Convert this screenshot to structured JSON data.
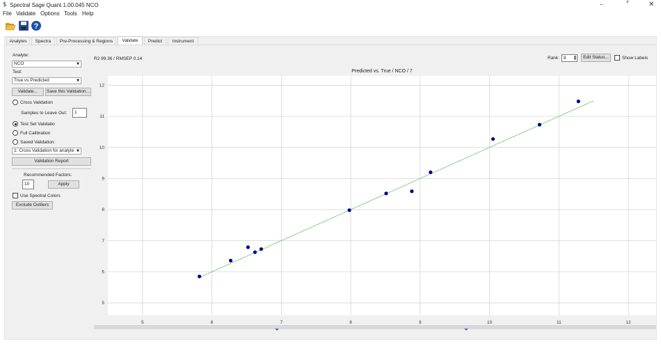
{
  "window": {
    "title": "Spectral Sage Quant 1.00.045 NCO",
    "app_icon": "$",
    "minimize_glyph": "–",
    "restore_glyph": "⌜",
    "close_glyph": "✕"
  },
  "menu": [
    "File",
    "Validate",
    "Options",
    "Tools",
    "Help"
  ],
  "toolbar": {
    "icons": [
      "open-folder-icon",
      "save-disk-icon",
      "help-icon"
    ],
    "help_glyph": "?"
  },
  "tabs": [
    {
      "label": "Analytes",
      "active": false
    },
    {
      "label": "Spectra",
      "active": false
    },
    {
      "label": "Pre-Processing & Regions",
      "active": false
    },
    {
      "label": "Validate",
      "active": true
    },
    {
      "label": "Predict",
      "active": false
    },
    {
      "label": "Instrument",
      "active": false
    }
  ],
  "left": {
    "analyte_label": "Analyte:",
    "analyte_value": "NCO",
    "test_label": "Test:",
    "test_value": "True vs Predicted",
    "validate_btn": "Validate...",
    "save_validation_btn": "Save this Validation...",
    "cross_validation": "Cross Validation",
    "samples_leave_out_label": "Samples to Leave Out:",
    "samples_leave_out_value": "1",
    "test_set_validation": "Test Set Validatio",
    "full_calibration": "Full Calibration",
    "saved_validation": "Saved Validation:",
    "saved_validation_value": "1: Cross Validation for analyte",
    "validation_report_btn": "Validation Report",
    "recommended_factors_label": "Recommended Factors:",
    "factors_value": "10",
    "apply_btn": "Apply",
    "use_spectral_colors": "Use Spectral Colors",
    "exclude_outliers_btn": "Exclude Outliers",
    "combo_arrow": "▼",
    "selected_mode": "test_set"
  },
  "header": {
    "stats": "R2 99.36 / RMSEP 0.14",
    "rank_label": "Rank:",
    "rank_value": "8",
    "spin_up": "▲",
    "spin_down": "▼",
    "edit_status_btn": "Edit Status...",
    "show_labels": "Show Labels"
  },
  "colors": {
    "point": "#00008b",
    "fit_line": "#3cb43c",
    "grid": "#d0d0d0"
  },
  "chart_data": {
    "type": "scatter",
    "title": "Predicted vs. True / NCO / 7",
    "xlabel": "",
    "ylabel": "",
    "xlim": [
      4.5,
      12.4
    ],
    "ylim": [
      4.6,
      12.3
    ],
    "x_ticks": [
      5,
      6,
      7,
      8,
      9,
      10,
      11,
      12
    ],
    "y_ticks": [
      5,
      6,
      7,
      8,
      9,
      10,
      11,
      12
    ],
    "grid": true,
    "points": [
      {
        "x": 5.82,
        "y": 5.85
      },
      {
        "x": 6.27,
        "y": 6.36
      },
      {
        "x": 6.52,
        "y": 6.79
      },
      {
        "x": 6.62,
        "y": 6.63
      },
      {
        "x": 6.71,
        "y": 6.73
      },
      {
        "x": 7.98,
        "y": 7.98
      },
      {
        "x": 8.51,
        "y": 8.52
      },
      {
        "x": 8.88,
        "y": 8.59
      },
      {
        "x": 9.15,
        "y": 9.2
      },
      {
        "x": 10.05,
        "y": 10.27
      },
      {
        "x": 10.72,
        "y": 10.73
      },
      {
        "x": 11.28,
        "y": 11.48
      }
    ],
    "fit_line": {
      "x": [
        5.85,
        11.5
      ],
      "y": [
        5.85,
        11.5
      ]
    }
  }
}
